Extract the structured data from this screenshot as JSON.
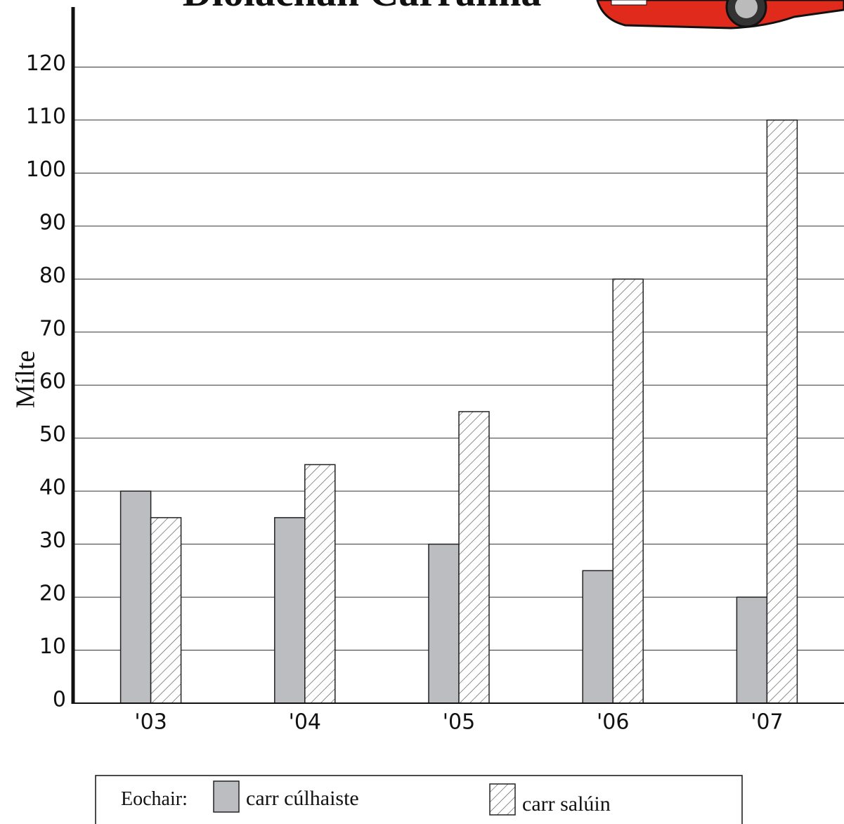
{
  "chart_data": {
    "type": "bar",
    "title": "Díolachán Carranna",
    "y_label": "Mílte",
    "categories": [
      "'03",
      "'04",
      "'05",
      "'06",
      "'07"
    ],
    "series": [
      {
        "name": "carr cúlhaiste",
        "color": "#bcbdc1",
        "values": [
          40,
          35,
          30,
          25,
          20
        ]
      },
      {
        "name": "carr salúin",
        "color": "#ffffff",
        "hatch": true,
        "values": [
          35,
          45,
          55,
          80,
          110
        ]
      }
    ],
    "legend_title": "Eochair:",
    "ylim": [
      0,
      130
    ],
    "yticks": [
      0,
      10,
      20,
      30,
      40,
      50,
      60,
      70,
      80,
      90,
      100,
      110,
      120
    ],
    "grid": true
  }
}
